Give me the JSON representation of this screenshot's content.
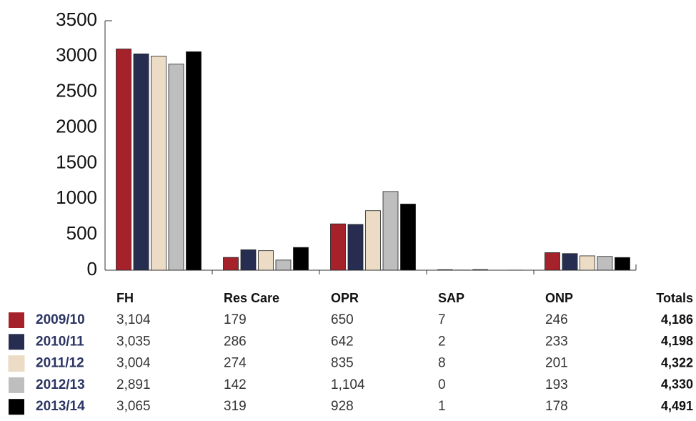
{
  "chart_data": {
    "type": "bar",
    "categories": [
      "FH",
      "Res Care",
      "OPR",
      "SAP",
      "ONP"
    ],
    "totals_header": "Totals",
    "series": [
      {
        "name": "2009/10",
        "color": "#a6222a",
        "values": [
          3104,
          179,
          650,
          7,
          246
        ],
        "value_labels": [
          "3,104",
          "179",
          "650",
          "7",
          "246"
        ],
        "total": "4,186"
      },
      {
        "name": "2010/11",
        "color": "#272d50",
        "values": [
          3035,
          286,
          642,
          2,
          233
        ],
        "value_labels": [
          "3,035",
          "286",
          "642",
          "2",
          "233"
        ],
        "total": "4,198"
      },
      {
        "name": "2011/12",
        "color": "#ecdcc6",
        "values": [
          3004,
          274,
          835,
          8,
          201
        ],
        "value_labels": [
          "3,004",
          "274",
          "835",
          "8",
          "201"
        ],
        "total": "4,322"
      },
      {
        "name": "2012/13",
        "color": "#bebebe",
        "values": [
          2891,
          142,
          1104,
          0,
          193
        ],
        "value_labels": [
          "2,891",
          "142",
          "1,104",
          "0",
          "193"
        ],
        "total": "4,330"
      },
      {
        "name": "2013/14",
        "color": "#000000",
        "values": [
          3065,
          319,
          928,
          1,
          178
        ],
        "value_labels": [
          "3,065",
          "319",
          "928",
          "1",
          "178"
        ],
        "total": "4,491"
      }
    ],
    "ylim": [
      0,
      3500
    ],
    "yticks": [
      0,
      500,
      1000,
      1500,
      2000,
      2500,
      3000,
      3500
    ]
  }
}
